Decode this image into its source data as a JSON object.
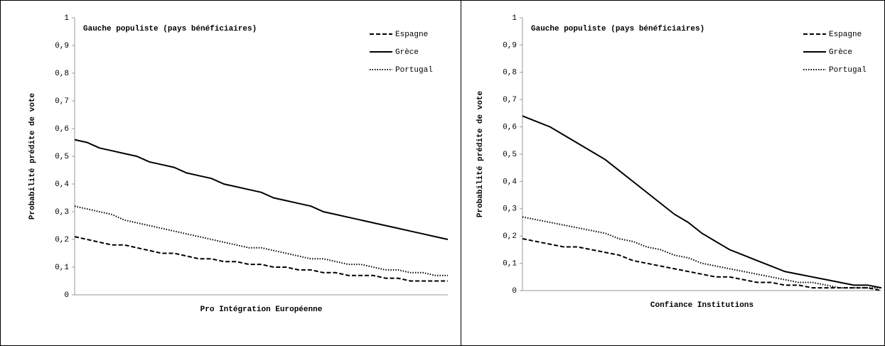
{
  "chart_data": [
    {
      "type": "line",
      "title": "Gauche populiste  (pays bénéficiaires)",
      "xlabel": "Pro Intégration Européenne",
      "ylabel": "Probabilité  prédite de vote",
      "categories": [
        null,
        null,
        null,
        null,
        null,
        null,
        null,
        null,
        null,
        null,
        null,
        null,
        null,
        null,
        null,
        null,
        null,
        null,
        null,
        null,
        null,
        null,
        null,
        null,
        null,
        null,
        null,
        null,
        null,
        null,
        null
      ],
      "series": [
        {
          "name": "Espagne",
          "color": "#000000",
          "dash": "dashed",
          "values": [
            0.21,
            0.2,
            0.19,
            0.18,
            0.18,
            0.17,
            0.16,
            0.15,
            0.15,
            0.14,
            0.13,
            0.13,
            0.12,
            0.12,
            0.11,
            0.11,
            0.1,
            0.1,
            0.09,
            0.09,
            0.08,
            0.08,
            0.07,
            0.07,
            0.07,
            0.06,
            0.06,
            0.05,
            0.05,
            0.05,
            0.05
          ]
        },
        {
          "name": "Grèce",
          "color": "#000000",
          "dash": "solid",
          "values": [
            0.56,
            0.55,
            0.53,
            0.52,
            0.51,
            0.5,
            0.48,
            0.47,
            0.46,
            0.44,
            0.43,
            0.42,
            0.4,
            0.39,
            0.38,
            0.37,
            0.35,
            0.34,
            0.33,
            0.32,
            0.3,
            0.29,
            0.28,
            0.27,
            0.26,
            0.25,
            0.24,
            0.23,
            0.22,
            0.21,
            0.2
          ]
        },
        {
          "name": "Portugal",
          "color": "#000000",
          "dash": "dotted",
          "values": [
            0.32,
            0.31,
            0.3,
            0.29,
            0.27,
            0.26,
            0.25,
            0.24,
            0.23,
            0.22,
            0.21,
            0.2,
            0.19,
            0.18,
            0.17,
            0.17,
            0.16,
            0.15,
            0.14,
            0.13,
            0.13,
            0.12,
            0.11,
            0.11,
            0.1,
            0.09,
            0.09,
            0.08,
            0.08,
            0.07,
            0.07
          ]
        }
      ],
      "ylim": [
        0,
        1
      ],
      "yticks": [
        0,
        {
          "value": 0.1,
          "label": "0,1"
        },
        {
          "value": 0.2,
          "label": "0,2"
        },
        {
          "value": 0.3,
          "label": "0,3"
        },
        {
          "value": 0.4,
          "label": "0,4"
        },
        {
          "value": 0.5,
          "label": "0,5"
        },
        {
          "value": 0.6,
          "label": "0,6"
        },
        {
          "value": 0.7,
          "label": "0,7"
        },
        {
          "value": 0.8,
          "label": "0,8"
        },
        {
          "value": 0.9,
          "label": "0,9"
        },
        1
      ],
      "grid": false,
      "legend": "top-right"
    },
    {
      "type": "line",
      "title": "Gauche populiste  (pays bénéficiaires)",
      "xlabel": "Confiance  Institutions",
      "ylabel": "Probabilité  prédite de vote",
      "categories": [
        null,
        null,
        null,
        null,
        null,
        null,
        null,
        null,
        null,
        null,
        null,
        null,
        null,
        null,
        null,
        null,
        null,
        null,
        null,
        null,
        null,
        null,
        null,
        null,
        null,
        null,
        null
      ],
      "series": [
        {
          "name": "Espagne",
          "color": "#000000",
          "dash": "dashed",
          "values": [
            0.19,
            0.18,
            0.17,
            0.16,
            0.16,
            0.15,
            0.14,
            0.13,
            0.11,
            0.1,
            0.09,
            0.08,
            0.07,
            0.06,
            0.05,
            0.05,
            0.04,
            0.03,
            0.03,
            0.02,
            0.02,
            0.01,
            0.01,
            0.01,
            0.01,
            0.01,
            0.0
          ]
        },
        {
          "name": "Grèce",
          "color": "#000000",
          "dash": "solid",
          "values": [
            0.64,
            0.62,
            0.6,
            0.57,
            0.54,
            0.51,
            0.48,
            0.44,
            0.4,
            0.36,
            0.32,
            0.28,
            0.25,
            0.21,
            0.18,
            0.15,
            0.13,
            0.11,
            0.09,
            0.07,
            0.06,
            0.05,
            0.04,
            0.03,
            0.02,
            0.02,
            0.01
          ]
        },
        {
          "name": "Portugal",
          "color": "#000000",
          "dash": "dotted",
          "values": [
            0.27,
            0.26,
            0.25,
            0.24,
            0.23,
            0.22,
            0.21,
            0.19,
            0.18,
            0.16,
            0.15,
            0.13,
            0.12,
            0.1,
            0.09,
            0.08,
            0.07,
            0.06,
            0.05,
            0.04,
            0.03,
            0.03,
            0.02,
            0.01,
            0.01,
            0.01,
            0.01
          ]
        }
      ],
      "ylim": [
        0,
        1
      ],
      "yticks": [
        0,
        {
          "value": 0.1,
          "label": "0,1"
        },
        {
          "value": 0.2,
          "label": "0,2"
        },
        {
          "value": 0.3,
          "label": "0,3"
        },
        {
          "value": 0.4,
          "label": "0,4"
        },
        {
          "value": 0.5,
          "label": "0,5"
        },
        {
          "value": 0.6,
          "label": "0,6"
        },
        {
          "value": 0.7,
          "label": "0,7"
        },
        {
          "value": 0.8,
          "label": "0,8"
        },
        {
          "value": 0.9,
          "label": "0,9"
        },
        1
      ],
      "grid": false,
      "legend": "top-right"
    }
  ]
}
